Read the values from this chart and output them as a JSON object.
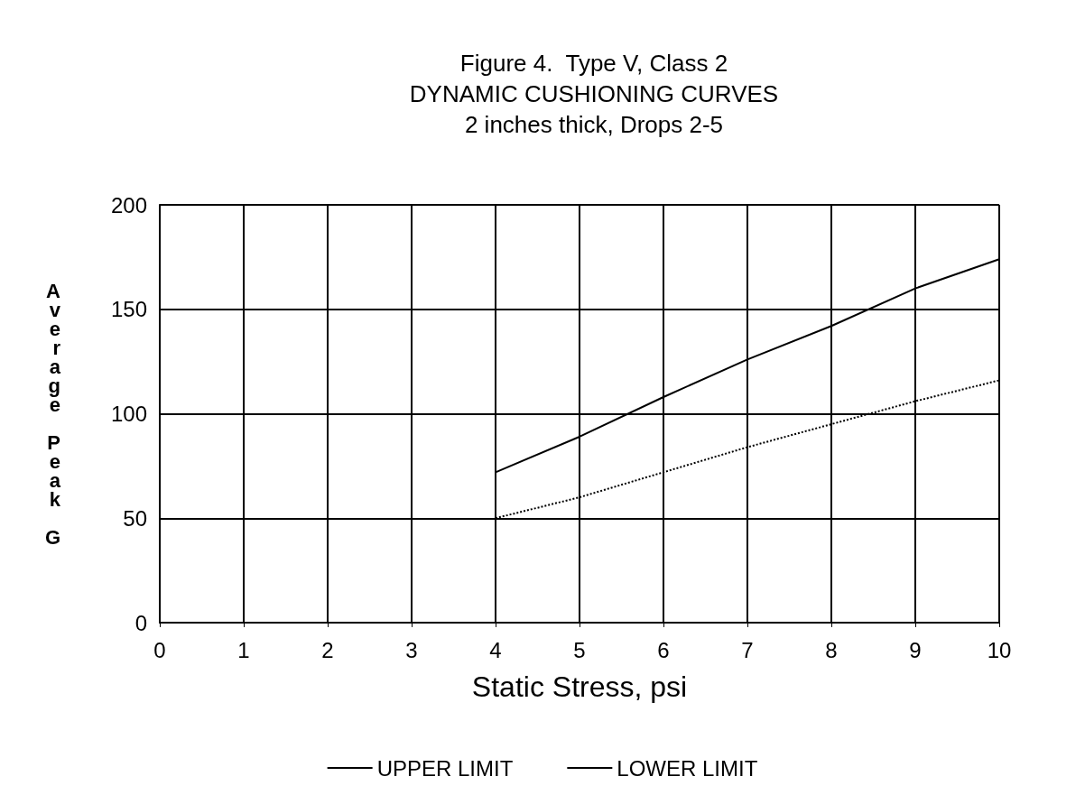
{
  "chart_data": {
    "type": "line",
    "title": "Figure 4.  Type V, Class 2\nDYNAMIC CUSHIONING CURVES\n2 inches thick, Drops 2-5",
    "xlabel": "Static Stress, psi",
    "ylabel": "Average Peak G",
    "x": [
      4,
      5,
      6,
      7,
      8,
      9,
      10
    ],
    "series": [
      {
        "name": "UPPER LIMIT",
        "color": "#000000",
        "line_style": "solid",
        "values": [
          72,
          89,
          108,
          126,
          142,
          160,
          174
        ]
      },
      {
        "name": "LOWER LIMIT",
        "color": "#000000",
        "line_style": "dotted",
        "values": [
          50,
          60,
          72,
          84,
          95,
          106,
          116
        ]
      }
    ],
    "xlim": [
      0,
      10
    ],
    "xticks": [
      0,
      1,
      2,
      3,
      4,
      5,
      6,
      7,
      8,
      9,
      10
    ],
    "ylim": [
      0,
      200
    ],
    "yticks": [
      0,
      50,
      100,
      150,
      200
    ],
    "grid": true,
    "legend": "bottom",
    "marker": "none"
  }
}
